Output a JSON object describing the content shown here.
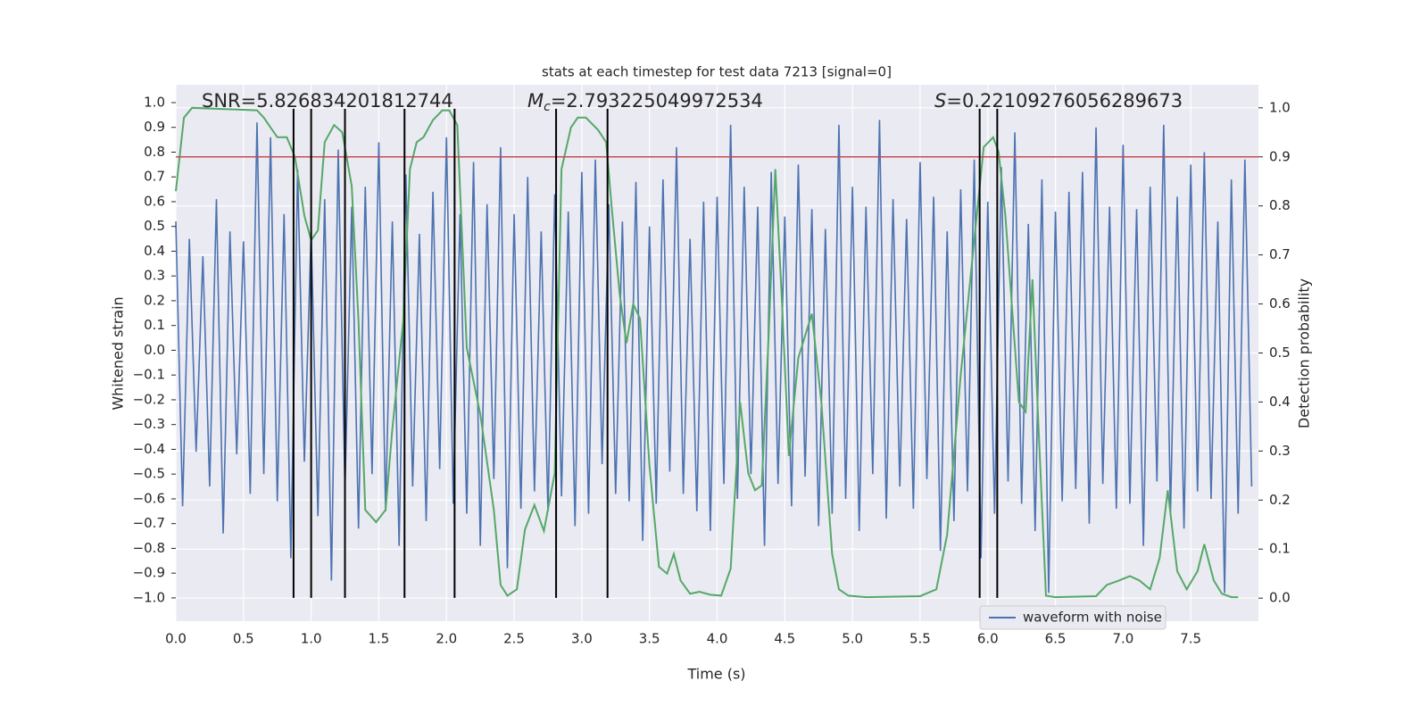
{
  "chart_data": {
    "type": "dual-line",
    "title": "stats at each timestep for test data 7213 [signal=0]",
    "x_label": "Time (s)",
    "y_label": "Whitened strain",
    "y2_label": "Detection probability",
    "annotations": [
      {
        "text": "SNR=5.826834201812744"
      },
      {
        "symbol": "M",
        "subscript": "c",
        "text": "=2.793225049972534"
      },
      {
        "symbol": "S",
        "text": "=0.22109276056289673"
      }
    ],
    "xlim": [
      0,
      8.0
    ],
    "ylim": [
      -1.094,
      1.072
    ],
    "y2lim": [
      -0.047,
      1.047
    ],
    "xticks": [
      {
        "value": 0,
        "label": "0.0"
      },
      {
        "value": 0.5,
        "label": "0.5"
      },
      {
        "value": 1,
        "label": "1.0"
      },
      {
        "value": 1.5,
        "label": "1.5"
      },
      {
        "value": 2,
        "label": "2.0"
      },
      {
        "value": 2.5,
        "label": "2.5"
      },
      {
        "value": 3,
        "label": "3.0"
      },
      {
        "value": 3.5,
        "label": "3.5"
      },
      {
        "value": 4,
        "label": "4.0"
      },
      {
        "value": 4.5,
        "label": "4.5"
      },
      {
        "value": 5,
        "label": "5.0"
      },
      {
        "value": 5.5,
        "label": "5.5"
      },
      {
        "value": 6,
        "label": "6.0"
      },
      {
        "value": 6.5,
        "label": "6.5"
      },
      {
        "value": 7,
        "label": "7.0"
      },
      {
        "value": 7.5,
        "label": "7.5"
      }
    ],
    "yticks": [
      {
        "value": -1,
        "label": "−1.0"
      },
      {
        "value": -0.9,
        "label": "−0.9"
      },
      {
        "value": -0.8,
        "label": "−0.8"
      },
      {
        "value": -0.7,
        "label": "−0.7"
      },
      {
        "value": -0.6,
        "label": "−0.6"
      },
      {
        "value": -0.5,
        "label": "−0.5"
      },
      {
        "value": -0.4,
        "label": "−0.4"
      },
      {
        "value": -0.3,
        "label": "−0.3"
      },
      {
        "value": -0.2,
        "label": "−0.2"
      },
      {
        "value": -0.1,
        "label": "−0.1"
      },
      {
        "value": 0,
        "label": "0.0"
      },
      {
        "value": 0.1,
        "label": "0.1"
      },
      {
        "value": 0.2,
        "label": "0.2"
      },
      {
        "value": 0.3,
        "label": "0.3"
      },
      {
        "value": 0.4,
        "label": "0.4"
      },
      {
        "value": 0.5,
        "label": "0.5"
      },
      {
        "value": 0.6,
        "label": "0.6"
      },
      {
        "value": 0.7,
        "label": "0.7"
      },
      {
        "value": 0.8,
        "label": "0.8"
      },
      {
        "value": 0.9,
        "label": "0.9"
      },
      {
        "value": 1,
        "label": "1.0"
      }
    ],
    "y2ticks": [
      {
        "value": 0,
        "label": "0.0"
      },
      {
        "value": 0.1,
        "label": "0.1"
      },
      {
        "value": 0.2,
        "label": "0.2"
      },
      {
        "value": 0.3,
        "label": "0.3"
      },
      {
        "value": 0.4,
        "label": "0.4"
      },
      {
        "value": 0.5,
        "label": "0.5"
      },
      {
        "value": 0.6,
        "label": "0.6"
      },
      {
        "value": 0.7,
        "label": "0.7"
      },
      {
        "value": 0.8,
        "label": "0.8"
      },
      {
        "value": 0.9,
        "label": "0.9"
      },
      {
        "value": 1,
        "label": "1.0"
      }
    ],
    "grid": true,
    "legend": "lower right",
    "series": [
      {
        "name": "waveform with noise",
        "color": "#4c72b0",
        "x": [
          0,
          0.05,
          0.1,
          0.15,
          0.2,
          0.25,
          0.3,
          0.35,
          0.4,
          0.45,
          0.5,
          0.55,
          0.6,
          0.65,
          0.7,
          0.75,
          0.8,
          0.85,
          0.9,
          0.95,
          1,
          1.05,
          1.1,
          1.15,
          1.2,
          1.25,
          1.3,
          1.35,
          1.4,
          1.45,
          1.5,
          1.55,
          1.6,
          1.65,
          1.7,
          1.75,
          1.8,
          1.85,
          1.9,
          1.95,
          2,
          2.05,
          2.1,
          2.15,
          2.2,
          2.25,
          2.3,
          2.35,
          2.4,
          2.45,
          2.5,
          2.55,
          2.6,
          2.65,
          2.7,
          2.75,
          2.8,
          2.85,
          2.9,
          2.95,
          3,
          3.05,
          3.1,
          3.15,
          3.2,
          3.25,
          3.3,
          3.35,
          3.4,
          3.45,
          3.5,
          3.55,
          3.6,
          3.65,
          3.7,
          3.75,
          3.8,
          3.85,
          3.9,
          3.95,
          4,
          4.05,
          4.1,
          4.15,
          4.2,
          4.25,
          4.3,
          4.35,
          4.4,
          4.45,
          4.5,
          4.55,
          4.6,
          4.65,
          4.7,
          4.75,
          4.8,
          4.85,
          4.9,
          4.95,
          5,
          5.05,
          5.1,
          5.15,
          5.2,
          5.25,
          5.3,
          5.35,
          5.4,
          5.45,
          5.5,
          5.55,
          5.6,
          5.65,
          5.7,
          5.75,
          5.8,
          5.85,
          5.9,
          5.95,
          6,
          6.05,
          6.1,
          6.15,
          6.2,
          6.25,
          6.3,
          6.35,
          6.4,
          6.45,
          6.5,
          6.55,
          6.6,
          6.65,
          6.7,
          6.75,
          6.8,
          6.85,
          6.9,
          6.95,
          7,
          7.05,
          7.1,
          7.15,
          7.2,
          7.25,
          7.3,
          7.35,
          7.4,
          7.45,
          7.5,
          7.55,
          7.6,
          7.65,
          7.7,
          7.75,
          7.8,
          7.85,
          7.9,
          7.95
        ],
        "values": [
          0.52,
          -0.63,
          0.45,
          -0.41,
          0.38,
          -0.55,
          0.61,
          -0.74,
          0.48,
          -0.42,
          0.44,
          -0.58,
          0.92,
          -0.5,
          0.86,
          -0.61,
          0.55,
          -0.84,
          0.73,
          -0.45,
          0.48,
          -0.67,
          0.61,
          -0.93,
          0.81,
          -0.56,
          0.58,
          -0.72,
          0.66,
          -0.5,
          0.84,
          -0.65,
          0.52,
          -0.79,
          0.71,
          -0.55,
          0.47,
          -0.69,
          0.64,
          -0.48,
          0.86,
          -0.62,
          0.55,
          -0.66,
          0.76,
          -0.79,
          0.59,
          -0.52,
          0.82,
          -0.88,
          0.55,
          -0.64,
          0.7,
          -0.57,
          0.48,
          -0.65,
          0.63,
          -0.59,
          0.56,
          -0.71,
          0.72,
          -0.66,
          0.77,
          -0.46,
          0.59,
          -0.58,
          0.52,
          -0.61,
          0.68,
          -0.77,
          0.5,
          -0.62,
          0.69,
          -0.49,
          0.82,
          -0.58,
          0.45,
          -0.65,
          0.6,
          -0.73,
          0.62,
          -0.54,
          0.91,
          -0.6,
          0.66,
          -0.5,
          0.58,
          -0.79,
          0.72,
          -0.54,
          0.54,
          -0.63,
          0.75,
          -0.51,
          0.57,
          -0.71,
          0.49,
          -0.66,
          0.91,
          -0.6,
          0.66,
          -0.73,
          0.58,
          -0.5,
          0.93,
          -0.68,
          0.61,
          -0.55,
          0.53,
          -0.64,
          0.76,
          -0.52,
          0.62,
          -0.81,
          0.48,
          -0.69,
          0.65,
          -0.57,
          0.77,
          -0.84,
          0.6,
          -0.66,
          0.74,
          -0.53,
          0.88,
          -0.62,
          0.51,
          -0.73,
          0.69,
          -0.98,
          0.56,
          -0.61,
          0.64,
          -0.56,
          0.72,
          -0.7,
          0.9,
          -0.54,
          0.58,
          -0.64,
          0.83,
          -0.62,
          0.57,
          -0.79,
          0.66,
          -0.53,
          0.91,
          -0.66,
          0.62,
          -0.72,
          0.75,
          -0.57,
          0.8,
          -0.6,
          0.52,
          -0.98,
          0.69,
          -0.66,
          0.77,
          -0.55
        ]
      },
      {
        "axis": "y2",
        "color": "#55a868",
        "x": [
          0,
          0.06,
          0.12,
          0.6,
          0.65,
          0.75,
          0.82,
          0.88,
          0.95,
          1,
          1.05,
          1.1,
          1.17,
          1.23,
          1.3,
          1.35,
          1.4,
          1.48,
          1.55,
          1.6,
          1.68,
          1.73,
          1.78,
          1.83,
          1.9,
          1.97,
          2.02,
          2.08,
          2.15,
          2.25,
          2.35,
          2.4,
          2.45,
          2.52,
          2.58,
          2.65,
          2.72,
          2.8,
          2.85,
          2.92,
          2.97,
          3.03,
          3.12,
          3.18,
          3.22,
          3.28,
          3.33,
          3.38,
          3.43,
          3.5,
          3.57,
          3.63,
          3.68,
          3.73,
          3.8,
          3.87,
          3.95,
          4.03,
          4.1,
          4.17,
          4.23,
          4.28,
          4.33,
          4.38,
          4.43,
          4.48,
          4.53,
          4.6,
          4.7,
          4.77,
          4.85,
          4.9,
          4.97,
          5.1,
          5.5,
          5.62,
          5.7,
          5.8,
          5.9,
          5.97,
          6.04,
          6.08,
          6.13,
          6.18,
          6.23,
          6.28,
          6.33,
          6.37,
          6.43,
          6.5,
          6.8,
          6.88,
          6.97,
          7.05,
          7.12,
          7.2,
          7.27,
          7.33,
          7.4,
          7.47,
          7.55,
          7.6,
          7.67,
          7.73,
          7.8,
          7.85
        ],
        "values": [
          0.83,
          0.98,
          1.0,
          0.995,
          0.98,
          0.94,
          0.94,
          0.9,
          0.78,
          0.73,
          0.75,
          0.93,
          0.965,
          0.95,
          0.84,
          0.565,
          0.18,
          0.155,
          0.18,
          0.345,
          0.565,
          0.875,
          0.93,
          0.94,
          0.975,
          0.995,
          0.995,
          0.965,
          0.51,
          0.375,
          0.18,
          0.027,
          0.005,
          0.018,
          0.14,
          0.19,
          0.137,
          0.255,
          0.875,
          0.96,
          0.98,
          0.98,
          0.955,
          0.93,
          0.8,
          0.62,
          0.52,
          0.6,
          0.57,
          0.27,
          0.064,
          0.05,
          0.09,
          0.036,
          0.009,
          0.013,
          0.007,
          0.005,
          0.06,
          0.4,
          0.255,
          0.22,
          0.23,
          0.53,
          0.875,
          0.6,
          0.29,
          0.49,
          0.58,
          0.4,
          0.09,
          0.018,
          0.005,
          0.002,
          0.004,
          0.018,
          0.13,
          0.455,
          0.73,
          0.92,
          0.94,
          0.91,
          0.78,
          0.59,
          0.4,
          0.38,
          0.65,
          0.38,
          0.005,
          0.002,
          0.004,
          0.027,
          0.036,
          0.045,
          0.036,
          0.018,
          0.082,
          0.22,
          0.055,
          0.018,
          0.055,
          0.11,
          0.036,
          0.009,
          0.002,
          0.002
        ]
      }
    ],
    "threshold": {
      "axis": "y2",
      "value": 0.9,
      "color": "#c44e52"
    },
    "vlines": {
      "color": "#000000",
      "x": [
        0.87,
        1.0,
        1.25,
        1.69,
        2.06,
        2.81,
        3.19,
        5.94,
        6.07
      ],
      "ymin": -1.0,
      "ymax": 0.975
    }
  }
}
